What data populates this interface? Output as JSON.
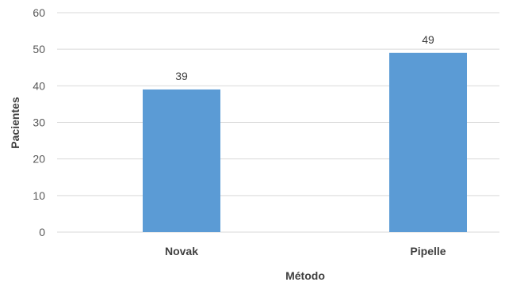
{
  "chart_data": {
    "type": "bar",
    "categories": [
      "Novak",
      "Pipelle"
    ],
    "values": [
      39,
      49
    ],
    "data_labels": [
      "39",
      "49"
    ],
    "yticks": [
      "0",
      "10",
      "20",
      "30",
      "40",
      "50",
      "60"
    ],
    "ylim": [
      0,
      60
    ],
    "xlabel": "Método",
    "ylabel": "Pacientes",
    "grid": true,
    "legend": "none",
    "bar_color": "#5B9BD5",
    "grid_color": "#D9D9D9"
  }
}
